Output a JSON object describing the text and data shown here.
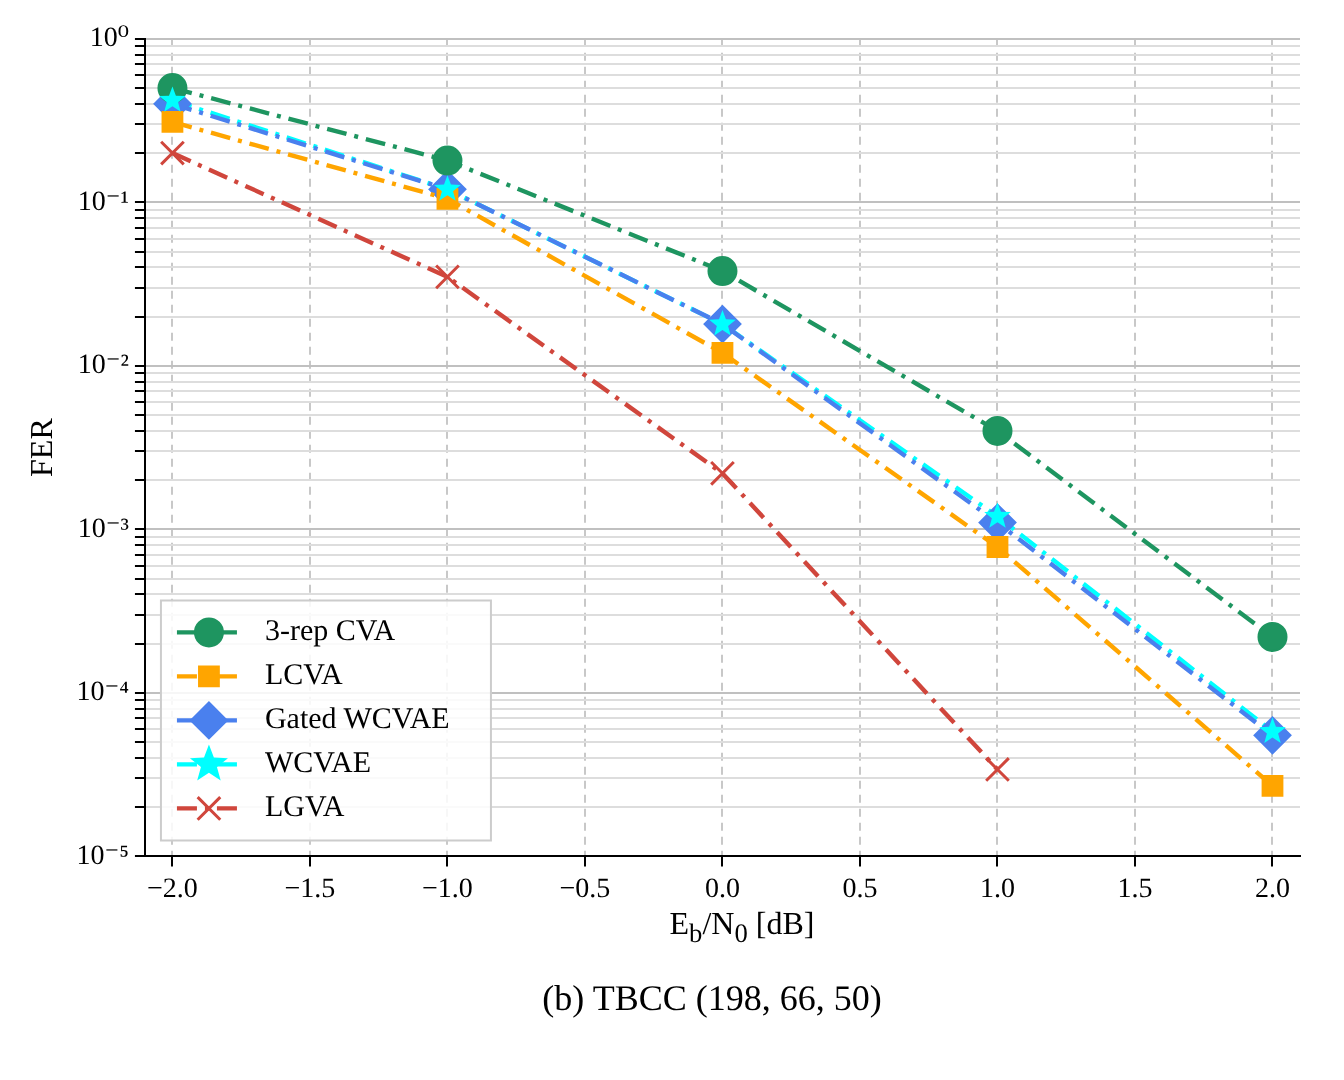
{
  "chart_data": {
    "type": "line",
    "x": [
      -2,
      -1,
      0,
      1,
      2
    ],
    "xlabel": "E$_{b}$/N$_{0}$ [dB]",
    "ylabel": "FER",
    "xlim": [
      -2.1,
      2.1
    ],
    "xticks": [
      {
        "value": -2,
        "label": "−2.0"
      },
      {
        "value": -1.5,
        "label": "−1.5"
      },
      {
        "value": -1,
        "label": "−1.0"
      },
      {
        "value": -0.5,
        "label": "−0.5"
      },
      {
        "value": 0,
        "label": "0.0"
      },
      {
        "value": 0.5,
        "label": "0.5"
      },
      {
        "value": 1,
        "label": "1.0"
      },
      {
        "value": 1.5,
        "label": "1.5"
      },
      {
        "value": 2,
        "label": "2.0"
      }
    ],
    "ylim": [
      1e-05,
      1
    ],
    "yticks": [
      {
        "value": 1e-05,
        "label": "10⁻⁵"
      },
      {
        "value": 0.0001,
        "label": "10⁻⁴"
      },
      {
        "value": 0.001,
        "label": "10⁻³"
      },
      {
        "value": 0.01,
        "label": "10⁻²"
      },
      {
        "value": 0.1,
        "label": "10⁻¹"
      },
      {
        "value": 1,
        "label": "10⁰"
      }
    ],
    "log": "y",
    "grid": true,
    "legend": "bottom left",
    "line_style": "dashed",
    "series": [
      {
        "name": "3-rep CVA",
        "color": "#1e9560",
        "marker": "circle",
        "values": [
          0.5,
          0.18,
          0.038,
          0.004,
          0.00022
        ]
      },
      {
        "name": "LCVA",
        "color": "#ffa500",
        "marker": "square",
        "values": [
          0.31,
          0.105,
          0.012,
          0.00078,
          2.7e-05
        ]
      },
      {
        "name": "Gated WCVAE",
        "color": "#4a80ee",
        "marker": "diamond",
        "values": [
          0.4,
          0.12,
          0.018,
          0.0011,
          5.5e-05
        ]
      },
      {
        "name": "WCVAE",
        "color": "#00ffff",
        "marker": "star",
        "values": [
          0.42,
          0.12,
          0.018,
          0.0012,
          5.8e-05
        ]
      },
      {
        "name": "LGVA",
        "color": "#d0463c",
        "marker": "cross",
        "values": [
          0.2,
          0.035,
          0.0022,
          3.4e-05,
          null
        ]
      }
    ],
    "annotations": [
      "(b) TBCC (198, 66, 50)"
    ]
  }
}
